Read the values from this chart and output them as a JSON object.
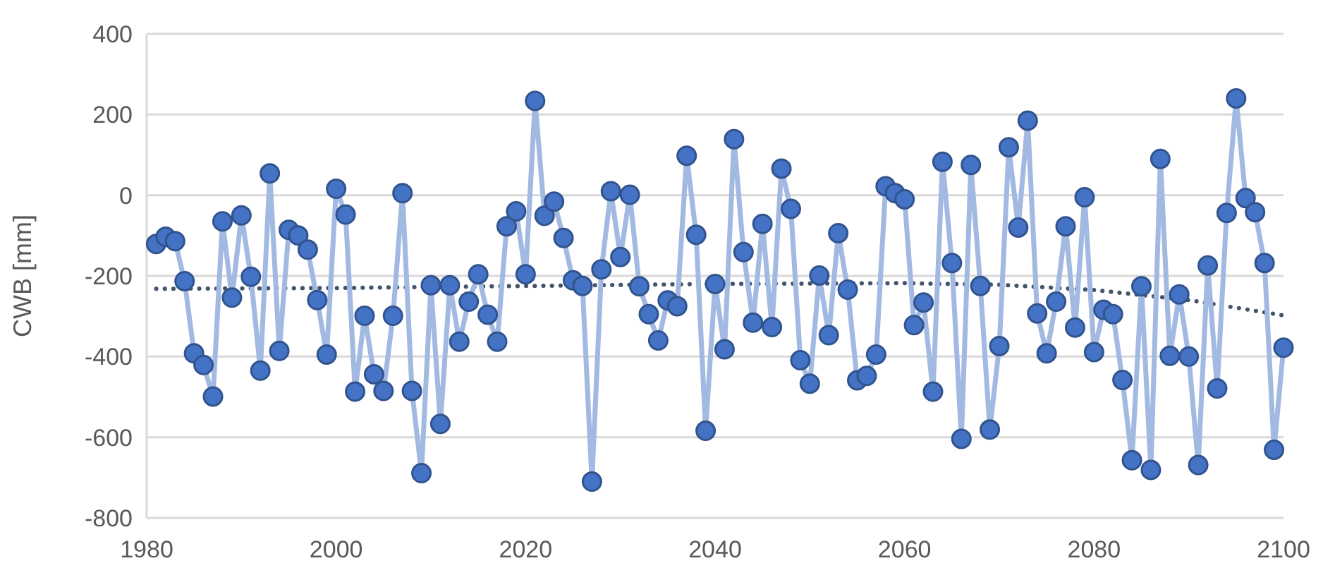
{
  "chart_data": {
    "type": "line",
    "ylabel": "CWB [mm]",
    "x": [
      1981,
      1982,
      1983,
      1984,
      1985,
      1986,
      1987,
      1988,
      1989,
      1990,
      1991,
      1992,
      1993,
      1994,
      1995,
      1996,
      1997,
      1998,
      1999,
      2000,
      2001,
      2002,
      2003,
      2004,
      2005,
      2006,
      2007,
      2008,
      2009,
      2010,
      2011,
      2012,
      2013,
      2014,
      2015,
      2016,
      2017,
      2018,
      2019,
      2020,
      2021,
      2022,
      2023,
      2024,
      2025,
      2026,
      2027,
      2028,
      2029,
      2030,
      2031,
      2032,
      2033,
      2034,
      2035,
      2036,
      2037,
      2038,
      2039,
      2040,
      2041,
      2042,
      2043,
      2044,
      2045,
      2046,
      2047,
      2048,
      2049,
      2050,
      2051,
      2052,
      2053,
      2054,
      2055,
      2056,
      2057,
      2058,
      2059,
      2060,
      2061,
      2062,
      2063,
      2064,
      2065,
      2066,
      2067,
      2068,
      2069,
      2070,
      2071,
      2072,
      2073,
      2074,
      2075,
      2076,
      2077,
      2078,
      2079,
      2080,
      2081,
      2082,
      2083,
      2084,
      2085,
      2086,
      2087,
      2088,
      2089,
      2090,
      2091,
      2092,
      2093,
      2094,
      2095,
      2096,
      2097,
      2098,
      2099,
      2100
    ],
    "series": [
      {
        "color": "#4472c4",
        "marker": "circle",
        "line_style": "solid",
        "values": [
          -121,
          -103,
          -114,
          -213,
          -392,
          -421,
          -499,
          -65,
          -254,
          -50,
          -202,
          -435,
          54,
          -386,
          -86,
          -100,
          -135,
          -260,
          -395,
          16,
          -48,
          -487,
          -299,
          -444,
          -485,
          -299,
          5,
          -485,
          -689,
          -223,
          -567,
          -223,
          -363,
          -264,
          -196,
          -296,
          -363,
          -77,
          -40,
          -196,
          234,
          -51,
          -16,
          -106,
          -211,
          -225,
          -710,
          -184,
          10,
          -153,
          1,
          -226,
          -295,
          -360,
          -261,
          -275,
          98,
          -98,
          -584,
          -220,
          -382,
          139,
          -141,
          -316,
          -71,
          -327,
          66,
          -34,
          -409,
          -467,
          -199,
          -347,
          -94,
          -234,
          -459,
          -448,
          -395,
          22,
          5,
          -10,
          -322,
          -266,
          -487,
          83,
          -168,
          -604,
          75,
          -225,
          -581,
          -374,
          119,
          -80,
          185,
          -293,
          -392,
          -264,
          -77,
          -328,
          -5,
          -389,
          -284,
          -295,
          -458,
          -657,
          -226,
          -681,
          90,
          -398,
          -246,
          -400,
          -669,
          -174,
          -479,
          -44,
          240,
          -7,
          -42,
          -168,
          -631,
          -378
        ]
      },
      {
        "color": "#44546a",
        "marker": "none",
        "line_style": "dotted",
        "x": [
          1981,
          2000,
          2020,
          2040,
          2060,
          2070,
          2080,
          2090,
          2100
        ],
        "values": [
          -232,
          -230,
          -225,
          -220,
          -218,
          -222,
          -235,
          -260,
          -298
        ]
      }
    ],
    "xlim": [
      1980,
      2100
    ],
    "xticks": [
      1980,
      2000,
      2020,
      2040,
      2060,
      2080,
      2100
    ],
    "ylim": [
      -800,
      400
    ],
    "yticks": [
      -800,
      -600,
      -400,
      -200,
      0,
      200,
      400
    ],
    "grid": "y"
  }
}
